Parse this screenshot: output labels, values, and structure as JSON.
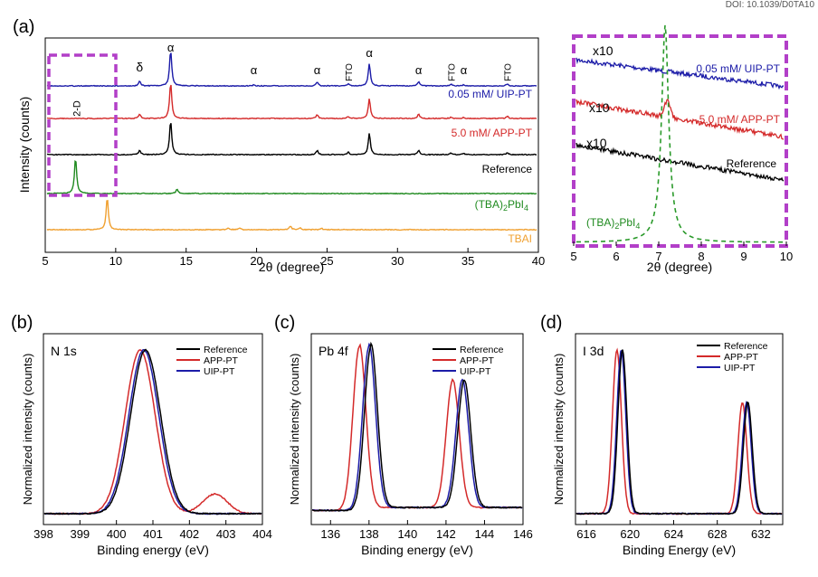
{
  "doi": "DOI: 10.1039/D0TA10",
  "colors": {
    "reference": "#000000",
    "app": "#d42a2a",
    "uip": "#1c1ca8",
    "green": "#1f8a1f",
    "orange": "#f0a030",
    "magenta": "#b23fc8",
    "green_dash": "#2a9a2a"
  },
  "chart_data": [
    {
      "type": "line",
      "panel": "(a)",
      "xlabel": "2θ (degree)",
      "ylabel": "Intensity (counts)",
      "xlim": [
        5,
        40
      ],
      "xticks": [
        "5",
        "10",
        "15",
        "20",
        "25",
        "30",
        "35",
        "40"
      ],
      "series": [
        {
          "name": "0.05 mM/ UIP-PT",
          "color": "uip",
          "peaks": [
            [
              11.7,
              0.12
            ],
            [
              13.9,
              1.0
            ],
            [
              19.8,
              0.03
            ],
            [
              24.3,
              0.1
            ],
            [
              26.5,
              0.05
            ],
            [
              28.0,
              0.62
            ],
            [
              31.5,
              0.12
            ],
            [
              33.8,
              0.04
            ],
            [
              34.7,
              0.03
            ],
            [
              37.8,
              0.06
            ]
          ]
        },
        {
          "name": "5.0 mM/ APP-PT",
          "color": "app",
          "peaks": [
            [
              11.7,
              0.12
            ],
            [
              13.9,
              1.0
            ],
            [
              24.3,
              0.1
            ],
            [
              26.5,
              0.05
            ],
            [
              28.0,
              0.55
            ],
            [
              31.5,
              0.12
            ],
            [
              33.8,
              0.04
            ],
            [
              34.7,
              0.03
            ],
            [
              37.8,
              0.06
            ]
          ]
        },
        {
          "name": "Reference",
          "color": "reference",
          "peaks": [
            [
              11.7,
              0.12
            ],
            [
              13.9,
              1.0
            ],
            [
              24.3,
              0.12
            ],
            [
              26.5,
              0.07
            ],
            [
              28.0,
              0.62
            ],
            [
              31.5,
              0.12
            ],
            [
              33.8,
              0.05
            ],
            [
              34.7,
              0.03
            ],
            [
              37.8,
              0.06
            ]
          ]
        },
        {
          "name": "(TBA)2PbI4",
          "color": "green",
          "peaks": [
            [
              7.15,
              1.0
            ],
            [
              14.35,
              0.12
            ]
          ]
        },
        {
          "name": "TBAI",
          "color": "orange",
          "peaks": [
            [
              9.4,
              0.9
            ],
            [
              18.0,
              0.05
            ],
            [
              18.8,
              0.05
            ],
            [
              22.4,
              0.1
            ],
            [
              23.1,
              0.05
            ],
            [
              24.6,
              0.04
            ]
          ]
        }
      ],
      "annotations": [
        {
          "text": "δ",
          "x": 11.7
        },
        {
          "text": "α",
          "x": 13.9
        },
        {
          "text": "α",
          "x": 19.8
        },
        {
          "text": "α",
          "x": 24.3
        },
        {
          "text": "FTO",
          "x": 26.5
        },
        {
          "text": "α",
          "x": 28.0
        },
        {
          "text": "α",
          "x": 31.5
        },
        {
          "text": "FTO",
          "x": 33.8
        },
        {
          "text": "α",
          "x": 34.7
        },
        {
          "text": "FTO",
          "x": 37.8
        },
        {
          "text": "2-D",
          "x": 7.2
        }
      ]
    },
    {
      "type": "line",
      "panel": "(a) inset",
      "xlabel": "2θ (degree)",
      "xlim": [
        5,
        10
      ],
      "xticks": [
        "5",
        "6",
        "7",
        "8",
        "9",
        "10"
      ],
      "scale_labels": [
        "x10",
        "x10",
        "x10"
      ],
      "series": [
        {
          "name": "0.05 mM/ UIP-PT",
          "color": "uip",
          "start": 0.3,
          "end": 0.15,
          "peak": null
        },
        {
          "name": "5.0 mM/ APP-PT",
          "color": "app",
          "start": 0.32,
          "end": 0.2,
          "peak": [
            7.2,
            0.38
          ]
        },
        {
          "name": "Reference",
          "color": "reference",
          "start": 0.4,
          "end": 0.18,
          "peak": null
        },
        {
          "name": "(TBA)2PbI4",
          "color": "green_dash",
          "peak": [
            7.15,
            1.0
          ],
          "dashed": true
        }
      ]
    },
    {
      "type": "line",
      "panel": "(b)",
      "title": "N 1s",
      "xlabel": "Binding energy (eV)",
      "ylabel": "Normalized intensity (counts)",
      "xlim": [
        398,
        404
      ],
      "xticks": [
        "398",
        "399",
        "400",
        "401",
        "402",
        "403",
        "404"
      ],
      "series": [
        {
          "name": "Reference",
          "color": "reference",
          "peaks": [
            [
              400.8,
              1.0,
              0.55
            ]
          ]
        },
        {
          "name": "APP-PT",
          "color": "app",
          "peaks": [
            [
              400.65,
              1.0,
              0.55
            ],
            [
              402.7,
              0.12,
              0.45
            ]
          ]
        },
        {
          "name": "UIP-PT",
          "color": "uip",
          "peaks": [
            [
              400.75,
              1.0,
              0.55
            ]
          ]
        }
      ]
    },
    {
      "type": "line",
      "panel": "(c)",
      "title": "Pb 4f",
      "xlabel": "Binding energy (eV)",
      "ylabel": "Normalized intensity (counts)",
      "xlim": [
        135,
        146
      ],
      "xticks": [
        "136",
        "138",
        "140",
        "142",
        "144",
        "146"
      ],
      "series": [
        {
          "name": "Reference",
          "color": "reference",
          "peaks": [
            [
              138.1,
              1.0,
              0.45
            ],
            [
              142.95,
              0.78,
              0.45
            ]
          ]
        },
        {
          "name": "APP-PT",
          "color": "app",
          "peaks": [
            [
              137.5,
              1.0,
              0.45
            ],
            [
              142.35,
              0.78,
              0.45
            ]
          ]
        },
        {
          "name": "UIP-PT",
          "color": "uip",
          "peaks": [
            [
              138.0,
              1.0,
              0.45
            ],
            [
              142.85,
              0.78,
              0.45
            ]
          ]
        }
      ]
    },
    {
      "type": "line",
      "panel": "(d)",
      "title": "I 3d",
      "xlabel": "Binding Energy (eV)",
      "ylabel": "Normalized intensity (counts)",
      "xlim": [
        615,
        634
      ],
      "xticks": [
        "616",
        "620",
        "624",
        "628",
        "632"
      ],
      "series": [
        {
          "name": "Reference",
          "color": "reference",
          "peaks": [
            [
              619.3,
              1.0,
              0.55
            ],
            [
              630.8,
              0.68,
              0.55
            ]
          ]
        },
        {
          "name": "APP-PT",
          "color": "app",
          "peaks": [
            [
              618.8,
              1.0,
              0.55
            ],
            [
              630.3,
              0.68,
              0.55
            ]
          ]
        },
        {
          "name": "UIP-PT",
          "color": "uip",
          "peaks": [
            [
              619.2,
              1.0,
              0.55
            ],
            [
              630.7,
              0.68,
              0.55
            ]
          ]
        }
      ]
    }
  ]
}
